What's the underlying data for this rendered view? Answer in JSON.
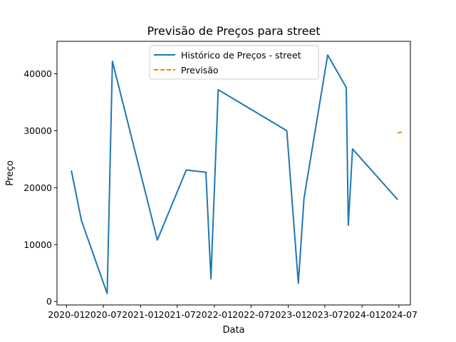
{
  "chart_data": {
    "type": "line",
    "title": "Previsão de Preços para street",
    "xlabel": "Data",
    "ylabel": "Preço",
    "xlim": [
      "2019-11-15",
      "2024-08-27"
    ],
    "ylim": [
      -600,
      45700
    ],
    "x_ticks": [
      "2020-01",
      "2020-07",
      "2021-01",
      "2021-07",
      "2022-01",
      "2022-07",
      "2023-01",
      "2023-07",
      "2024-01",
      "2024-07"
    ],
    "x_tick_dates": [
      "2020-01-01",
      "2020-07-01",
      "2021-01-01",
      "2021-07-01",
      "2022-01-01",
      "2022-07-01",
      "2023-01-01",
      "2023-07-01",
      "2024-01-01",
      "2024-07-01"
    ],
    "y_ticks": [
      "0",
      "10000",
      "20000",
      "30000",
      "40000"
    ],
    "y_tick_values": [
      0,
      10000,
      20000,
      30000,
      40000
    ],
    "grid": false,
    "legend": "upper center",
    "series": [
      {
        "name": "Histórico de Preços - street",
        "color": "#1f77b4",
        "style": "solid",
        "x": [
          "2020-01-25",
          "2020-03-15",
          "2020-07-20",
          "2020-08-15",
          "2021-03-25",
          "2021-08-15",
          "2021-11-20",
          "2021-12-15",
          "2022-01-20",
          "2022-12-25",
          "2023-02-20",
          "2023-03-20",
          "2023-07-15",
          "2023-10-15",
          "2023-10-25",
          "2023-11-15",
          "2024-06-25"
        ],
        "values": [
          23000,
          14200,
          1400,
          42200,
          10800,
          23100,
          22700,
          4000,
          37200,
          30000,
          3200,
          18100,
          43300,
          37600,
          13400,
          26800,
          17900
        ]
      },
      {
        "name": "Previsão",
        "color": "#ff7f0e",
        "style": "dashed",
        "x": [
          "2024-06-25",
          "2024-07-25"
        ],
        "values": [
          29600,
          29850
        ]
      }
    ]
  }
}
